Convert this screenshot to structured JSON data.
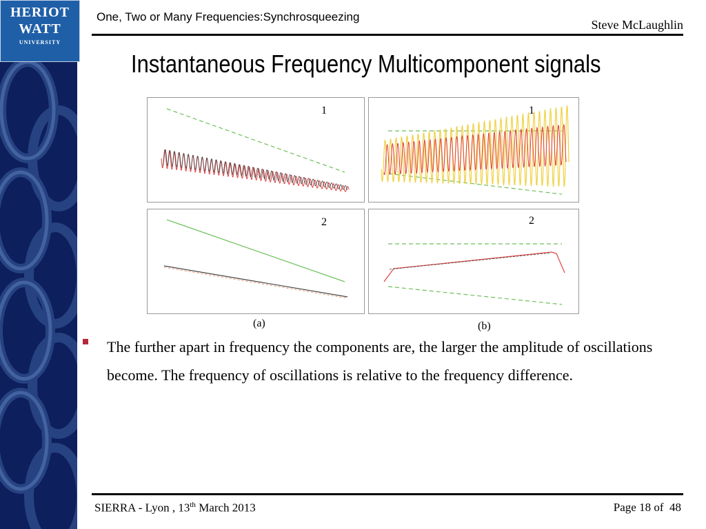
{
  "logo": {
    "line1": "HERIOT",
    "line2": "WATT",
    "line3": "UNIVERSITY"
  },
  "header": {
    "course_title": "One, Two or Many Frequencies:Synchrosqueezing",
    "author": "Steve McLaughlin"
  },
  "slide": {
    "title": "Instantaneous Frequency Multicomponent signals",
    "bullet": "The further apart in frequency the components are, the larger the amplitude of oscillations become. The frequency of oscillations is relative to the frequency difference."
  },
  "figure": {
    "panels": [
      {
        "label": "1"
      },
      {
        "label": "1"
      },
      {
        "label": "2"
      },
      {
        "label": "2"
      }
    ],
    "captions": {
      "a": "(a)",
      "b": "(b)"
    }
  },
  "footer": {
    "event": "SIERRA - Lyon , 13",
    "ordinal": "th",
    "date_rest": " March 2013",
    "page_label": "Page 18 of",
    "page_total": "48"
  },
  "colors": {
    "sidebar": "#0d1f5c",
    "logo_bg": "#1f5fa8",
    "bullet": "#b5283c",
    "green_dashed": "#6dbf5a",
    "red_trace": "#e04040",
    "yellow_trace": "#f0d040"
  }
}
